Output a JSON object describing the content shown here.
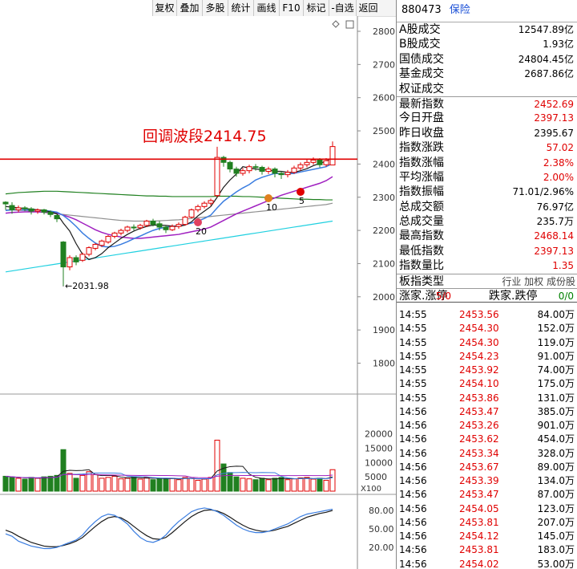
{
  "toolbar": [
    "复权",
    "叠加",
    "多股",
    "统计",
    "画线",
    "F10",
    "标记",
    "-自选",
    "返回"
  ],
  "header": {
    "code": "880473",
    "name": "保险"
  },
  "price_axis": [
    "2800",
    "2700",
    "2600",
    "2500",
    "2400",
    "2300",
    "2200",
    "2100",
    "2000",
    "1900",
    "1800"
  ],
  "volume_axis": [
    "20000",
    "15000",
    "10000",
    "5000"
  ],
  "volume_unit": "X100",
  "kdj_axis": [
    "80.00",
    "50.00",
    "20.00"
  ],
  "annotations": {
    "wave": "回调波段2414.75",
    "low": "2031.98",
    "ma_labels": [
      "20",
      "10",
      "5"
    ]
  },
  "stats": [
    {
      "label": "A股成交",
      "value": "12547.89亿",
      "color": "blk"
    },
    {
      "label": "B股成交",
      "value": "1.93亿",
      "color": "blk"
    },
    {
      "label": "国债成交",
      "value": "24804.45亿",
      "color": "blk"
    },
    {
      "label": "基金成交",
      "value": "2687.86亿",
      "color": "blk"
    },
    {
      "label": "权证成交",
      "value": "",
      "color": "blk"
    },
    {
      "label": "最新指数",
      "value": "2452.69",
      "color": "red"
    },
    {
      "label": "今日开盘",
      "value": "2397.13",
      "color": "red"
    },
    {
      "label": "昨日收盘",
      "value": "2395.67",
      "color": "blk"
    },
    {
      "label": "指数涨跌",
      "value": "57.02",
      "color": "red"
    },
    {
      "label": "指数涨幅",
      "value": "2.38%",
      "color": "red"
    },
    {
      "label": "平均涨幅",
      "value": "2.00%",
      "color": "red"
    },
    {
      "label": "指数振幅",
      "value": "71.01/2.96%",
      "color": "blk"
    },
    {
      "label": "总成交额",
      "value": "76.97亿",
      "color": "blk"
    },
    {
      "label": "总成交量",
      "value": "235.7万",
      "color": "blk"
    },
    {
      "label": "最高指数",
      "value": "2468.14",
      "color": "red"
    },
    {
      "label": "最低指数",
      "value": "2397.13",
      "color": "red"
    },
    {
      "label": "指数量比",
      "value": "1.35",
      "color": "red"
    }
  ],
  "board": {
    "label": "板指类型",
    "options": "行业 加权 成份股"
  },
  "limit": {
    "up_label": "涨家.涨停",
    "up_value": "5/0",
    "down_label": "跌家.跌停",
    "down_value": "0/0"
  },
  "ticks": [
    {
      "time": "14:55",
      "price": "2453.56",
      "vol": "84.00万"
    },
    {
      "time": "14:55",
      "price": "2454.30",
      "vol": "152.0万"
    },
    {
      "time": "14:55",
      "price": "2454.30",
      "vol": "119.0万"
    },
    {
      "time": "14:55",
      "price": "2454.23",
      "vol": "91.00万"
    },
    {
      "time": "14:55",
      "price": "2453.92",
      "vol": "74.00万"
    },
    {
      "time": "14:55",
      "price": "2454.10",
      "vol": "175.0万"
    },
    {
      "time": "14:55",
      "price": "2453.86",
      "vol": "131.0万"
    },
    {
      "time": "14:56",
      "price": "2453.47",
      "vol": "385.0万"
    },
    {
      "time": "14:56",
      "price": "2453.26",
      "vol": "901.0万"
    },
    {
      "time": "14:56",
      "price": "2453.62",
      "vol": "454.0万"
    },
    {
      "time": "14:56",
      "price": "2453.34",
      "vol": "328.0万"
    },
    {
      "time": "14:56",
      "price": "2453.67",
      "vol": "89.00万"
    },
    {
      "time": "14:56",
      "price": "2453.39",
      "vol": "134.0万"
    },
    {
      "time": "14:56",
      "price": "2453.47",
      "vol": "87.00万"
    },
    {
      "time": "14:56",
      "price": "2454.05",
      "vol": "123.0万"
    },
    {
      "time": "14:56",
      "price": "2453.81",
      "vol": "207.0万"
    },
    {
      "time": "14:56",
      "price": "2454.12",
      "vol": "145.0万"
    },
    {
      "time": "14:56",
      "price": "2453.81",
      "vol": "183.0万"
    },
    {
      "time": "14:56",
      "price": "2454.02",
      "vol": "53.00万"
    }
  ],
  "colors": {
    "up": "#e00000",
    "down": "#208020",
    "ma5": "#1a1a1a",
    "ma10": "#3a7de0",
    "ma20": "#a020c0",
    "ma60": "#208020",
    "ma120": "#909090",
    "ma250": "#20d0e0",
    "hline": "#e00000"
  },
  "chart_data": {
    "type": "candlestick",
    "hline": 2414.75,
    "low_marker": 2031.98,
    "ylim": [
      1750,
      2830
    ],
    "candles": [
      [
        2285,
        2280,
        2262,
        2288
      ],
      [
        2275,
        2262,
        2250,
        2285
      ],
      [
        2262,
        2268,
        2255,
        2275
      ],
      [
        2268,
        2265,
        2258,
        2273
      ],
      [
        2265,
        2258,
        2248,
        2270
      ],
      [
        2258,
        2262,
        2250,
        2266
      ],
      [
        2262,
        2255,
        2248,
        2265
      ],
      [
        2255,
        2248,
        2240,
        2260
      ],
      [
        2245,
        2235,
        2225,
        2250
      ],
      [
        2165,
        2090,
        2032,
        2168
      ],
      [
        2090,
        2118,
        2080,
        2125
      ],
      [
        2118,
        2105,
        2095,
        2125
      ],
      [
        2110,
        2128,
        2105,
        2133
      ],
      [
        2128,
        2148,
        2122,
        2152
      ],
      [
        2146,
        2158,
        2140,
        2162
      ],
      [
        2155,
        2168,
        2150,
        2172
      ],
      [
        2165,
        2182,
        2160,
        2186
      ],
      [
        2182,
        2192,
        2176,
        2196
      ],
      [
        2192,
        2200,
        2185,
        2205
      ],
      [
        2200,
        2210,
        2194,
        2214
      ],
      [
        2210,
        2208,
        2200,
        2218
      ],
      [
        2208,
        2215,
        2202,
        2220
      ],
      [
        2215,
        2228,
        2210,
        2232
      ],
      [
        2228,
        2218,
        2212,
        2235
      ],
      [
        2220,
        2210,
        2200,
        2228
      ],
      [
        2210,
        2202,
        2192,
        2215
      ],
      [
        2202,
        2212,
        2198,
        2218
      ],
      [
        2212,
        2218,
        2205,
        2224
      ],
      [
        2218,
        2240,
        2214,
        2244
      ],
      [
        2240,
        2262,
        2236,
        2266
      ],
      [
        2262,
        2272,
        2255,
        2278
      ],
      [
        2272,
        2282,
        2266,
        2288
      ],
      [
        2282,
        2290,
        2275,
        2296
      ],
      [
        2305,
        2420,
        2300,
        2452
      ],
      [
        2420,
        2405,
        2392,
        2425
      ],
      [
        2405,
        2385,
        2375,
        2410
      ],
      [
        2385,
        2372,
        2362,
        2392
      ],
      [
        2372,
        2380,
        2365,
        2388
      ],
      [
        2380,
        2392,
        2372,
        2398
      ],
      [
        2392,
        2390,
        2380,
        2400
      ],
      [
        2390,
        2378,
        2368,
        2395
      ],
      [
        2378,
        2385,
        2370,
        2392
      ],
      [
        2385,
        2372,
        2360,
        2390
      ],
      [
        2372,
        2368,
        2355,
        2378
      ],
      [
        2368,
        2375,
        2360,
        2382
      ],
      [
        2375,
        2388,
        2370,
        2395
      ],
      [
        2388,
        2398,
        2380,
        2405
      ],
      [
        2398,
        2405,
        2390,
        2415
      ],
      [
        2405,
        2412,
        2398,
        2420
      ],
      [
        2412,
        2398,
        2390,
        2418
      ],
      [
        2398,
        2410,
        2392,
        2418
      ],
      [
        2397.13,
        2452.69,
        2397.13,
        2468.14
      ]
    ],
    "volumes": [
      [
        5200,
        "d"
      ],
      [
        4800,
        "d"
      ],
      [
        4500,
        "u"
      ],
      [
        4200,
        "d"
      ],
      [
        4800,
        "d"
      ],
      [
        4500,
        "u"
      ],
      [
        5000,
        "d"
      ],
      [
        5200,
        "d"
      ],
      [
        5500,
        "d"
      ],
      [
        14500,
        "d"
      ],
      [
        6200,
        "u"
      ],
      [
        4500,
        "d"
      ],
      [
        5500,
        "u"
      ],
      [
        6800,
        "u"
      ],
      [
        5800,
        "u"
      ],
      [
        4500,
        "u"
      ],
      [
        4800,
        "u"
      ],
      [
        5200,
        "u"
      ],
      [
        4300,
        "u"
      ],
      [
        4500,
        "u"
      ],
      [
        5000,
        "d"
      ],
      [
        4200,
        "u"
      ],
      [
        4800,
        "u"
      ],
      [
        4000,
        "d"
      ],
      [
        4500,
        "d"
      ],
      [
        4200,
        "d"
      ],
      [
        4500,
        "u"
      ],
      [
        4000,
        "u"
      ],
      [
        4800,
        "u"
      ],
      [
        4500,
        "u"
      ],
      [
        3800,
        "u"
      ],
      [
        4200,
        "u"
      ],
      [
        4800,
        "u"
      ],
      [
        17800,
        "u"
      ],
      [
        9500,
        "d"
      ],
      [
        6500,
        "d"
      ],
      [
        5000,
        "d"
      ],
      [
        4500,
        "u"
      ],
      [
        4300,
        "u"
      ],
      [
        4000,
        "d"
      ],
      [
        4500,
        "d"
      ],
      [
        4000,
        "u"
      ],
      [
        4500,
        "d"
      ],
      [
        4800,
        "d"
      ],
      [
        4000,
        "u"
      ],
      [
        4300,
        "u"
      ],
      [
        4600,
        "u"
      ],
      [
        4800,
        "u"
      ],
      [
        4200,
        "u"
      ],
      [
        4500,
        "d"
      ],
      [
        3800,
        "u"
      ],
      [
        7500,
        "u"
      ]
    ],
    "ma5": [
      2272,
      2270,
      2268,
      2266,
      2264,
      2262,
      2260,
      2256,
      2250,
      2222,
      2198,
      2160,
      2128,
      2112,
      2118,
      2130,
      2148,
      2162,
      2176,
      2188,
      2198,
      2206,
      2212,
      2216,
      2216,
      2215,
      2213,
      2212,
      2216,
      2226,
      2244,
      2258,
      2272,
      2300,
      2330,
      2352,
      2370,
      2392,
      2388,
      2385,
      2383,
      2382,
      2378,
      2378,
      2375,
      2375,
      2380,
      2386,
      2395,
      2402,
      2408,
      2420
    ],
    "ma10": [
      2260,
      2262,
      2262,
      2262,
      2262,
      2261,
      2260,
      2258,
      2255,
      2245,
      2230,
      2212,
      2192,
      2176,
      2162,
      2152,
      2150,
      2152,
      2158,
      2166,
      2175,
      2183,
      2192,
      2200,
      2206,
      2210,
      2212,
      2214,
      2218,
      2222,
      2228,
      2236,
      2246,
      2268,
      2288,
      2302,
      2316,
      2328,
      2338,
      2352,
      2360,
      2366,
      2372,
      2370,
      2370,
      2372,
      2376,
      2380,
      2384,
      2388,
      2392,
      2402
    ],
    "ma20": [
      2252,
      2254,
      2255,
      2256,
      2256,
      2256,
      2255,
      2254,
      2252,
      2246,
      2240,
      2232,
      2222,
      2212,
      2202,
      2194,
      2188,
      2184,
      2180,
      2178,
      2176,
      2176,
      2178,
      2180,
      2182,
      2184,
      2186,
      2188,
      2192,
      2196,
      2200,
      2204,
      2210,
      2220,
      2230,
      2240,
      2250,
      2258,
      2266,
      2274,
      2282,
      2290,
      2298,
      2306,
      2312,
      2318,
      2324,
      2330,
      2336,
      2342,
      2350,
      2362
    ],
    "ma60": [
      2310,
      2312,
      2314,
      2315,
      2316,
      2317,
      2318,
      2318,
      2318,
      2317,
      2316,
      2315,
      2314,
      2313,
      2312,
      2311,
      2310,
      2309,
      2308,
      2307,
      2306,
      2305,
      2304,
      2304,
      2303,
      2303,
      2302,
      2302,
      2302,
      2302,
      2302,
      2302,
      2302,
      2303,
      2303,
      2303,
      2303,
      2302,
      2302,
      2301,
      2300,
      2299,
      2298,
      2297,
      2296,
      2295,
      2294,
      2294,
      2293,
      2293,
      2292,
      2292
    ],
    "ma120": [
      2262,
      2262,
      2261,
      2260,
      2258,
      2256,
      2254,
      2252,
      2250,
      2248,
      2246,
      2244,
      2242,
      2240,
      2238,
      2236,
      2234,
      2232,
      2230,
      2229,
      2228,
      2228,
      2228,
      2228,
      2229,
      2230,
      2231,
      2232,
      2234,
      2236,
      2238,
      2240,
      2242,
      2244,
      2246,
      2248,
      2250,
      2252,
      2254,
      2256,
      2258,
      2260,
      2262,
      2264,
      2266,
      2268,
      2270,
      2272,
      2274,
      2276,
      2278,
      2282
    ],
    "ma250": [
      2075,
      2078,
      2081,
      2084,
      2087,
      2090,
      2093,
      2096,
      2099,
      2102,
      2105,
      2108,
      2111,
      2114,
      2117,
      2120,
      2123,
      2126,
      2129,
      2132,
      2135,
      2138,
      2141,
      2144,
      2147,
      2150,
      2153,
      2156,
      2159,
      2162,
      2165,
      2168,
      2171,
      2174,
      2177,
      2180,
      2183,
      2186,
      2189,
      2192,
      2195,
      2198,
      2201,
      2204,
      2207,
      2210,
      2213,
      2216,
      2219,
      2222,
      2225,
      2228
    ],
    "kdj_k": [
      42,
      38,
      30,
      26,
      22,
      20,
      18,
      18,
      20,
      24,
      28,
      32,
      40,
      52,
      62,
      70,
      74,
      72,
      66,
      58,
      46,
      36,
      30,
      28,
      32,
      40,
      52,
      62,
      70,
      78,
      82,
      84,
      82,
      78,
      72,
      64,
      56,
      50,
      46,
      44,
      44,
      46,
      50,
      54,
      58,
      64,
      70,
      74,
      76,
      78,
      80,
      82
    ],
    "kdj_d": [
      48,
      44,
      38,
      33,
      28,
      25,
      22,
      21,
      21,
      23,
      26,
      30,
      36,
      45,
      54,
      62,
      68,
      70,
      68,
      62,
      54,
      46,
      39,
      34,
      33,
      36,
      44,
      53,
      62,
      70,
      76,
      80,
      81,
      79,
      75,
      69,
      62,
      56,
      51,
      48,
      46,
      46,
      48,
      51,
      54,
      59,
      64,
      69,
      72,
      75,
      77,
      80
    ]
  }
}
